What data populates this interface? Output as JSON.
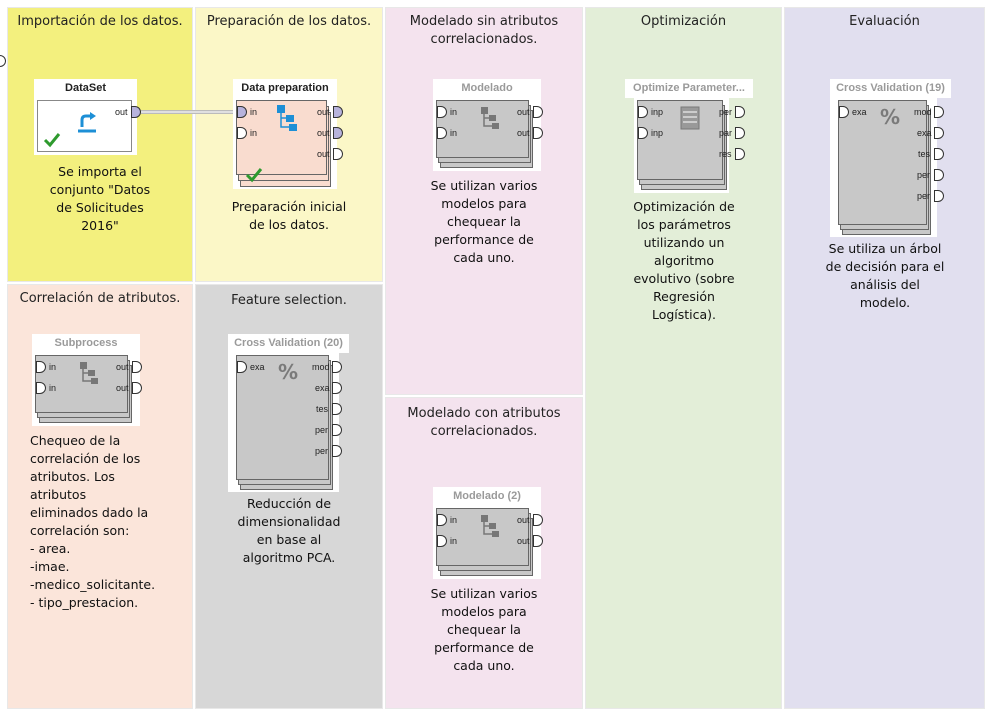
{
  "panels": {
    "importacion": {
      "title": "Importación de los datos.",
      "color": "#f3f07e",
      "note": "Se importa el\nconjunto \"Datos\nde Solicitudes\n2016\""
    },
    "preparacion": {
      "title": "Preparación de los datos.",
      "color": "#fbf7c7",
      "note": "Preparación inicial\nde los datos."
    },
    "modelado_sin": {
      "title": "Modelado sin atributos\ncorrelacionados.",
      "color": "#f4e3ee",
      "note": "Se utilizan varios\nmodelos para\nchequear la\nperformance de\ncada uno."
    },
    "optimizacion": {
      "title": "Optimización",
      "color": "#e3eed8",
      "note": "Optimización de\nlos parámetros\nutilizando un\nalgoritmo\nevolutivo (sobre\nRegresión\nLogística)."
    },
    "evaluacion": {
      "title": "Evaluación",
      "color": "#e1dfef",
      "note": "Se utiliza un árbol\nde decisión para el\nanálisis del\nmodelo."
    },
    "correlacion": {
      "title": "Correlación de atributos.",
      "color": "#fbe5da",
      "note": "Chequeo de la\ncorrelación de los\natributos. Los\natributos\neliminados dado la\ncorrelación son:\n- area.\n-imae.\n-medico_solicitante.\n- tipo_prestacion."
    },
    "feature": {
      "title": "Feature selection.",
      "color": "#d7d7d7",
      "note": "Reducción de\ndimensionalidad\nen base al\nalgoritmo PCA."
    },
    "modelado_con": {
      "title": "Modelado con atributos\ncorrelacionados.",
      "color": "#f4e3ee",
      "note": "Se utilizan varios\nmodelos para\nchequear la\nperformance de\ncada uno."
    }
  },
  "process_input_label": "inp",
  "operators": {
    "dataset": {
      "title": "DataSet",
      "ports_out": [
        "out"
      ]
    },
    "data_preparation": {
      "title": "Data preparation",
      "ports_in": [
        "in",
        "in"
      ],
      "ports_out": [
        "out",
        "out",
        "out"
      ]
    },
    "modelado": {
      "title": "Modelado",
      "ports_in": [
        "in",
        "in"
      ],
      "ports_out": [
        "out",
        "out"
      ]
    },
    "optimize": {
      "title": "Optimize Parameter...",
      "ports_in": [
        "inp",
        "inp"
      ],
      "ports_out": [
        "per",
        "par",
        "res"
      ]
    },
    "cross_validation_19": {
      "title": "Cross Validation (19)",
      "ports_in": [
        "exa"
      ],
      "ports_out": [
        "mod",
        "exa",
        "tes",
        "per",
        "per"
      ]
    },
    "subprocess": {
      "title": "Subprocess",
      "ports_in": [
        "in",
        "in"
      ],
      "ports_out": [
        "out",
        "out"
      ]
    },
    "cross_validation_20": {
      "title": "Cross Validation (20)",
      "ports_in": [
        "exa"
      ],
      "ports_out": [
        "mod",
        "exa",
        "tes",
        "per",
        "per"
      ]
    },
    "modelado_2": {
      "title": "Modelado (2)",
      "ports_in": [
        "in",
        "in"
      ],
      "ports_out": [
        "out",
        "out"
      ]
    }
  },
  "icons": {
    "check": "checkmark-icon",
    "retrieve": "retrieve-arrow-icon",
    "subprocess": "subprocess-tree-icon",
    "percent": "percent-icon",
    "optimize": "optimize-stack-icon"
  },
  "colors": {
    "port_fill": "#b7b3dc",
    "operator_body": "#c8c8c8",
    "check_green": "#2e9a2e",
    "icon_blue": "#1d8fd6"
  }
}
